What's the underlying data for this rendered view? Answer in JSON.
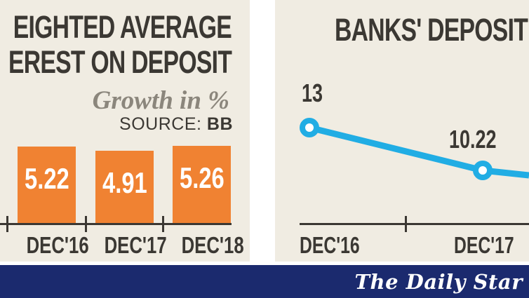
{
  "chart_data": [
    {
      "type": "bar",
      "title_lines": [
        "EIGHTED AVERAGE",
        "EREST ON DEPOSIT"
      ],
      "subtitle": "Growth in %",
      "source_label": "SOURCE:",
      "source_value": "BB",
      "categories": [
        "DEC'16",
        "DEC'17",
        "DEC'18"
      ],
      "values": [
        5.22,
        4.91,
        5.26
      ],
      "bar_color": "#f08232",
      "ylim": [
        0,
        6
      ],
      "grid": false,
      "value_labels_inside_bars": true
    },
    {
      "type": "line",
      "title": "BANKS' DEPOSIT",
      "categories": [
        "DEC'16",
        "DEC'17"
      ],
      "values": [
        13,
        10.22
      ],
      "line_color": "#21ade4",
      "marker_fill": "#ffffff",
      "grid": false,
      "note_units": "Growth in %"
    }
  ],
  "footer": {
    "brand": "The Daily Star",
    "background": "#1b2a6e"
  },
  "colors": {
    "panel_background": "#f0ece2",
    "text": "#3b3833",
    "subtitle_text": "#8b867c",
    "bar_orange": "#f08232",
    "line_blue": "#21ade4",
    "footer_navy": "#1b2a6e"
  }
}
